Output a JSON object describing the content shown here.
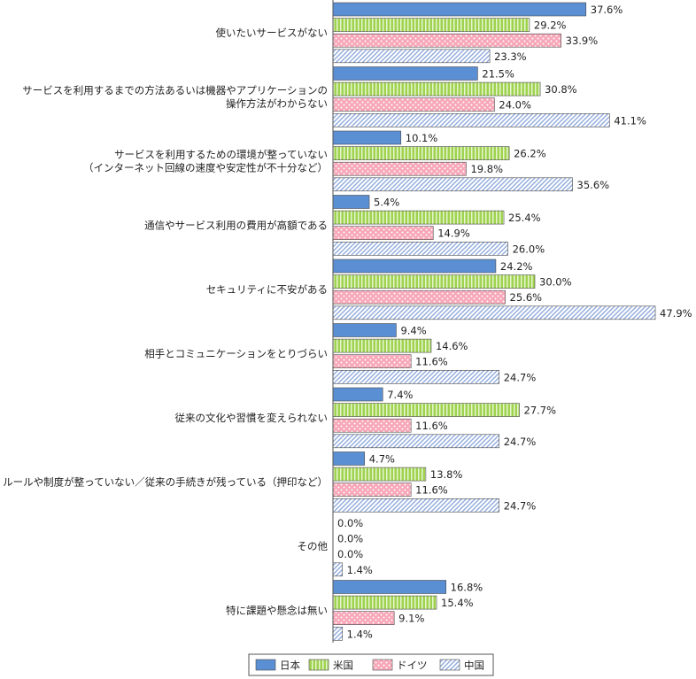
{
  "chart_data": {
    "type": "bar",
    "orientation": "horizontal",
    "categories": [
      [
        "使いたいサービスがない"
      ],
      [
        "サービスを利用するまでの方法あるいは機器やアプリケーションの",
        "操作方法がわからない"
      ],
      [
        "サービスを利用するための環境が整っていない",
        "（インターネット回線の速度や安定性が不十分など）"
      ],
      [
        "通信やサービス利用の費用が高額である"
      ],
      [
        "セキュリティに不安がある"
      ],
      [
        "相手とコミュニケーションをとりづらい"
      ],
      [
        "従来の文化や習慣を変えられない"
      ],
      [
        "ルールや制度が整っていない／従来の手続きが残っている（押印など）"
      ],
      [
        "その他"
      ],
      [
        "特に課題や懸念は無い"
      ]
    ],
    "series": [
      {
        "name": "日本",
        "color": "#5b8fd4",
        "pattern": "solid",
        "values": [
          37.6,
          21.5,
          10.1,
          5.4,
          24.2,
          9.4,
          7.4,
          4.7,
          0.0,
          16.8
        ]
      },
      {
        "name": "米国",
        "color": "#9fd24f",
        "pattern": "vertical-stripes",
        "values": [
          29.2,
          30.8,
          26.2,
          25.4,
          30.0,
          14.6,
          27.7,
          13.8,
          0.0,
          15.4
        ]
      },
      {
        "name": "ドイツ",
        "color": "#f7a7b8",
        "pattern": "dots",
        "values": [
          33.9,
          24.0,
          19.8,
          14.9,
          25.6,
          11.6,
          11.6,
          11.6,
          0.0,
          9.1
        ]
      },
      {
        "name": "中国",
        "color": "#8faadc",
        "pattern": "diagonal-hatch",
        "values": [
          23.3,
          41.1,
          35.6,
          26.0,
          47.9,
          24.7,
          24.7,
          24.7,
          1.4,
          1.4
        ]
      }
    ],
    "value_suffix": "%",
    "xlim": [
      0,
      50
    ],
    "grid": false,
    "legend_position": "bottom"
  }
}
